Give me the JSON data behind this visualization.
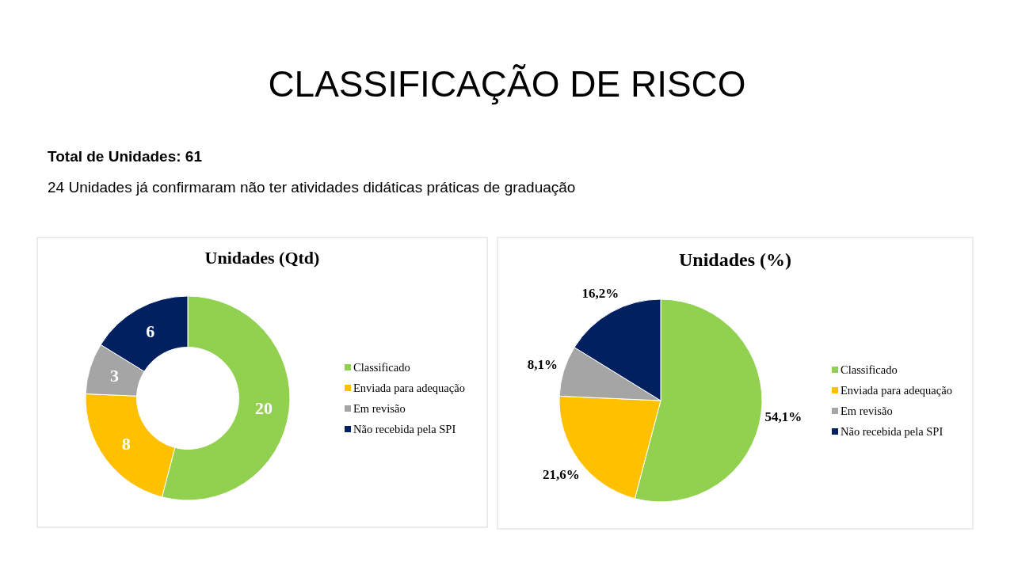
{
  "chart_data": [
    {
      "type": "other",
      "title": "CLASSIFICAÇÃO DE RISCO",
      "annotations": [
        "Total de Unidades: 61",
        "24 Unidades já confirmaram não ter atividades didáticas práticas de graduação"
      ]
    },
    {
      "type": "donut",
      "title": "Unidades (Qtd)",
      "categories": [
        "Classificado",
        "Enviada para adequação",
        "Em revisão",
        "Não recebida pela SPI"
      ],
      "values": [
        20,
        8,
        3,
        6
      ],
      "colors": [
        "#92d050",
        "#ffc000",
        "#a5a5a5",
        "#002060"
      ],
      "data_labels": true,
      "legend": "right"
    },
    {
      "type": "pie",
      "title": "Unidades (%)",
      "categories": [
        "Classificado",
        "Enviada para adequação",
        "Em revisão",
        "Não recebida pela SPI"
      ],
      "values": [
        54.1,
        21.6,
        8.1,
        16.2
      ],
      "colors": [
        "#92d050",
        "#ffc000",
        "#a5a5a5",
        "#002060"
      ],
      "value_labels": [
        "54,1%",
        "21,6%",
        "8,1%",
        "16,2%"
      ],
      "legend": "right"
    }
  ]
}
